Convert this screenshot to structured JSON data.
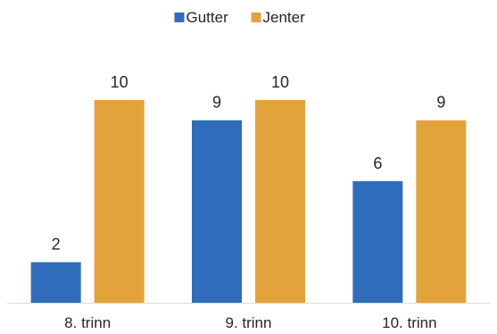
{
  "chart_data": {
    "type": "bar",
    "categories": [
      "8. trinn",
      "9. trinn",
      "10. trinn"
    ],
    "series": [
      {
        "name": "Gutter",
        "values": [
          2,
          9,
          6
        ],
        "color": "#2f6dbb"
      },
      {
        "name": "Jenter",
        "values": [
          10,
          10,
          9
        ],
        "color": "#e3a33b"
      }
    ],
    "ylim": [
      0,
      10
    ],
    "grid": false,
    "legend_position": "top-center",
    "data_labels": true,
    "axis_line_color": "#d9d9d9"
  }
}
